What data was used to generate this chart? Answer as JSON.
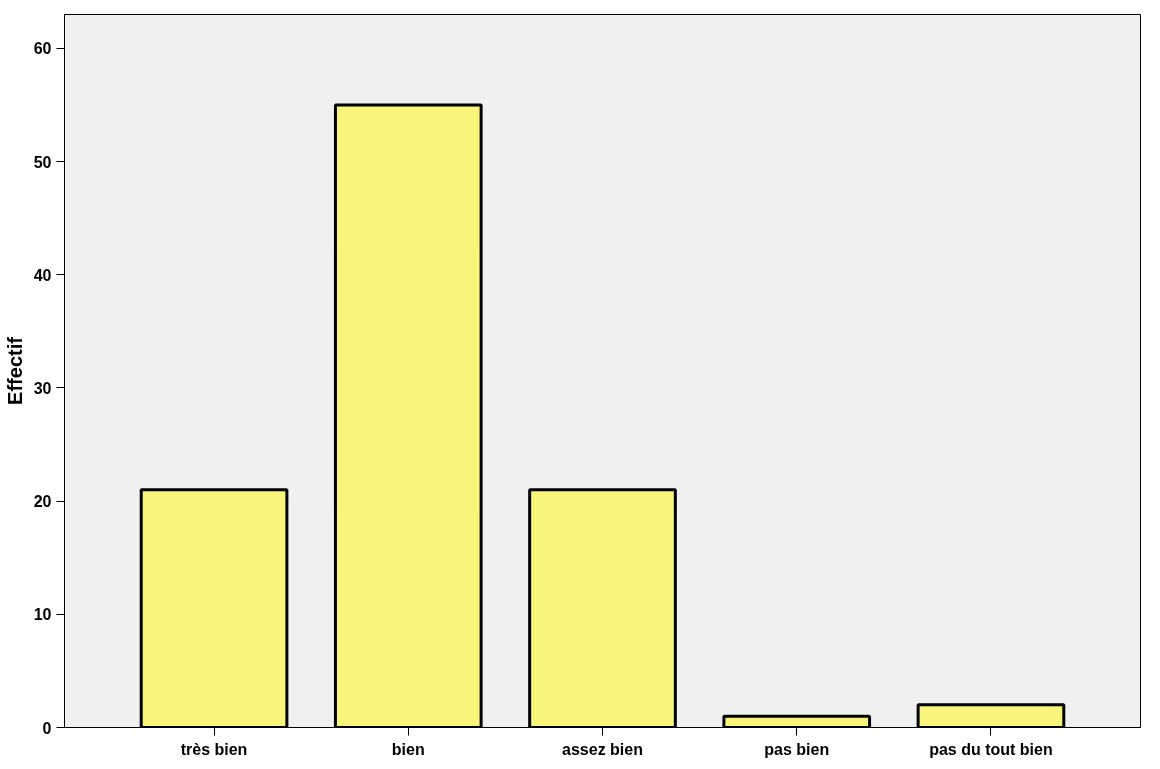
{
  "chart_data": {
    "type": "bar",
    "ylabel": "Effectif",
    "categories": [
      "très bien",
      "bien",
      "assez bien",
      "pas bien",
      "pas du tout bien"
    ],
    "values": [
      21,
      55,
      21,
      1,
      2
    ],
    "color": "#f8f57a",
    "ylim": [
      0,
      63
    ],
    "yticks": [
      0,
      10,
      20,
      30,
      40,
      50,
      60
    ],
    "grid": false
  }
}
